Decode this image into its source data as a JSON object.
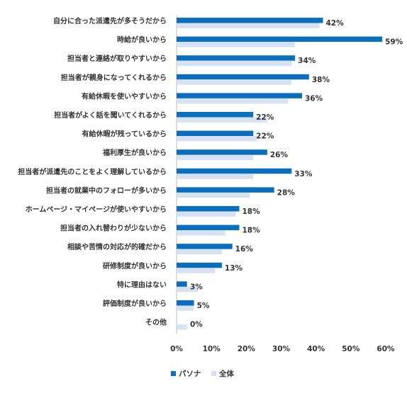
{
  "chart_data": {
    "type": "bar",
    "orientation": "horizontal",
    "categories": [
      "自分に合った派遣先が多そうだから",
      "時給が良いから",
      "担当者と連絡が取りやすいから",
      "担当者が親身になってくれるから",
      "有給休暇を使いやすいから",
      "担当者がよく話を聞いてくれるから",
      "有給休暇が残っているから",
      "福利厚生が良いから",
      "担当者が派遣先のことをよく理解しているから",
      "担当者の就業中のフォローが多いから",
      "ホームページ・マイページが使いやすいから",
      "担当者の入れ替わりが少ないから",
      "相談や苦情の対応が的確だから",
      "研修制度が良いから",
      "特に理由はない",
      "評価制度が良いから",
      "その他"
    ],
    "series": [
      {
        "name": "パソナ",
        "color": "#0a6ebd",
        "values": [
          42,
          59,
          34,
          38,
          36,
          22,
          22,
          26,
          33,
          28,
          18,
          18,
          16,
          13,
          3,
          5,
          0
        ],
        "labels": [
          "42%",
          "59%",
          "34%",
          "38%",
          "36%",
          "22%",
          "22%",
          "26%",
          "33%",
          "28%",
          "18%",
          "18%",
          "16%",
          "13%",
          "3%",
          "5%",
          "0%"
        ]
      },
      {
        "name": "全体",
        "color": "#d6e2f2",
        "values": [
          41,
          34,
          33,
          33,
          32,
          26,
          23,
          22,
          22,
          21,
          17,
          14,
          13,
          11,
          6,
          5,
          3
        ]
      }
    ],
    "xlim": [
      0,
      60
    ],
    "xticks": [
      "0%",
      "10%",
      "20%",
      "30%",
      "40%",
      "50%",
      "60%"
    ],
    "xtick_values": [
      0,
      10,
      20,
      30,
      40,
      50,
      60
    ],
    "grid": false,
    "legend_position": "bottom-center"
  }
}
